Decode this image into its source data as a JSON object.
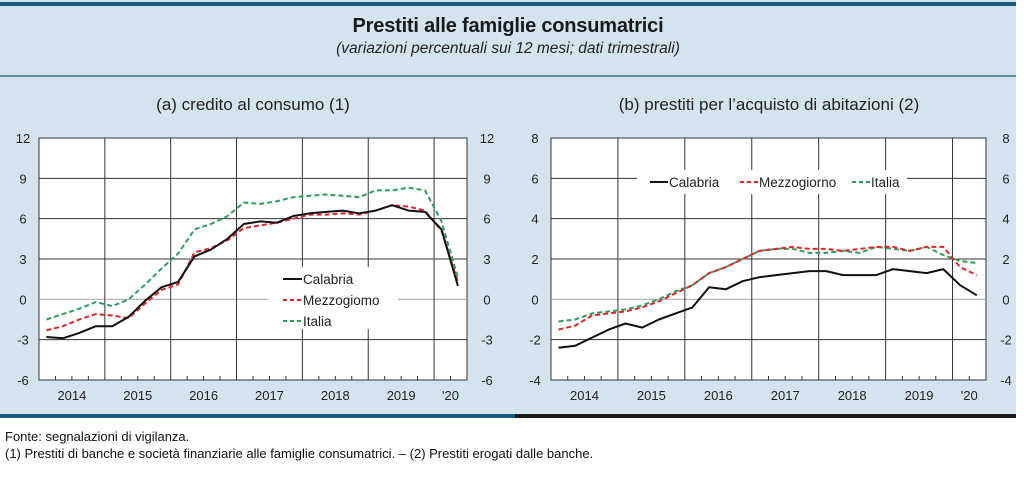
{
  "header": {
    "title": "Prestiti alle famiglie consumatrici",
    "subtitle": "(variazioni percentuali sui 12 mesi; dati trimestrali)"
  },
  "colors": {
    "frame_bg": "#d3e4ee",
    "accent_blue": "#1b5c7e",
    "calabria": "#111111",
    "mezzogiorno": "#e0262b",
    "italia": "#2e9e5b"
  },
  "chart_data": [
    {
      "type": "line",
      "title": "(a) credito al consumo (1)",
      "xlabel": "",
      "ylabel": "",
      "x_tick_labels": [
        "2014",
        "2015",
        "2016",
        "2017",
        "2018",
        "2019",
        "'20"
      ],
      "x": [
        "2014Q1",
        "2014Q2",
        "2014Q3",
        "2014Q4",
        "2015Q1",
        "2015Q2",
        "2015Q3",
        "2015Q4",
        "2016Q1",
        "2016Q2",
        "2016Q3",
        "2016Q4",
        "2017Q1",
        "2017Q2",
        "2017Q3",
        "2017Q4",
        "2018Q1",
        "2018Q2",
        "2018Q3",
        "2018Q4",
        "2019Q1",
        "2019Q2",
        "2019Q3",
        "2019Q4",
        "2020Q1",
        "2020Q2"
      ],
      "ylim": [
        -6,
        12
      ],
      "y_ticks": [
        -6,
        -3,
        0,
        3,
        6,
        9,
        12
      ],
      "grid": true,
      "legend_position": "center-right",
      "legend_layout": "vertical",
      "series": [
        {
          "name": "Calabria",
          "style": "solid",
          "values": [
            -2.8,
            -2.9,
            -2.5,
            -2.0,
            -2.0,
            -1.3,
            -0.1,
            0.9,
            1.3,
            3.2,
            3.7,
            4.5,
            5.6,
            5.8,
            5.7,
            6.2,
            6.4,
            6.5,
            6.6,
            6.4,
            6.6,
            7.0,
            6.6,
            6.5,
            5.2,
            1.0
          ]
        },
        {
          "name": "Mezzogiomo",
          "style": "dashed",
          "values": [
            -2.3,
            -2.0,
            -1.5,
            -1.1,
            -1.2,
            -1.4,
            -0.3,
            0.7,
            1.1,
            3.5,
            3.8,
            4.4,
            5.3,
            5.5,
            5.7,
            6.0,
            6.3,
            6.3,
            6.4,
            6.3,
            6.6,
            7.0,
            6.9,
            6.6,
            5.1,
            1.3
          ]
        },
        {
          "name": "Italia",
          "style": "dashed",
          "values": [
            -1.5,
            -1.1,
            -0.7,
            -0.2,
            -0.5,
            0.0,
            1.1,
            2.3,
            3.4,
            5.2,
            5.6,
            6.2,
            7.2,
            7.1,
            7.3,
            7.6,
            7.7,
            7.8,
            7.7,
            7.6,
            8.1,
            8.1,
            8.3,
            8.1,
            5.8,
            1.6
          ]
        }
      ]
    },
    {
      "type": "line",
      "title": "(b) prestiti per l’acquisto di abitazioni (2)",
      "xlabel": "",
      "ylabel": "",
      "x_tick_labels": [
        "2014",
        "2015",
        "2016",
        "2017",
        "2018",
        "2019",
        "'20"
      ],
      "x": [
        "2014Q1",
        "2014Q2",
        "2014Q3",
        "2014Q4",
        "2015Q1",
        "2015Q2",
        "2015Q3",
        "2015Q4",
        "2016Q1",
        "2016Q2",
        "2016Q3",
        "2016Q4",
        "2017Q1",
        "2017Q2",
        "2017Q3",
        "2017Q4",
        "2018Q1",
        "2018Q2",
        "2018Q3",
        "2018Q4",
        "2019Q1",
        "2019Q2",
        "2019Q3",
        "2019Q4",
        "2020Q1",
        "2020Q2"
      ],
      "ylim": [
        -4,
        8
      ],
      "y_ticks": [
        -4,
        -2,
        0,
        2,
        4,
        6,
        8
      ],
      "grid": true,
      "legend_position": "top-center",
      "legend_layout": "horizontal",
      "series": [
        {
          "name": "Calabria",
          "style": "solid",
          "values": [
            -2.4,
            -2.3,
            -1.9,
            -1.5,
            -1.2,
            -1.4,
            -1.0,
            -0.7,
            -0.4,
            0.6,
            0.5,
            0.9,
            1.1,
            1.2,
            1.3,
            1.4,
            1.4,
            1.2,
            1.2,
            1.2,
            1.5,
            1.4,
            1.3,
            1.5,
            0.7,
            0.2
          ]
        },
        {
          "name": "Mezzogiorno",
          "style": "dashed",
          "values": [
            -1.5,
            -1.3,
            -0.8,
            -0.7,
            -0.6,
            -0.4,
            -0.1,
            0.3,
            0.7,
            1.3,
            1.6,
            2.0,
            2.4,
            2.5,
            2.6,
            2.5,
            2.5,
            2.4,
            2.5,
            2.6,
            2.6,
            2.4,
            2.6,
            2.6,
            1.6,
            1.2
          ]
        },
        {
          "name": "Italia",
          "style": "dashed",
          "values": [
            -1.1,
            -1.0,
            -0.7,
            -0.6,
            -0.5,
            -0.3,
            0.0,
            0.4,
            0.7,
            1.3,
            1.6,
            2.0,
            2.4,
            2.5,
            2.5,
            2.3,
            2.3,
            2.4,
            2.3,
            2.6,
            2.5,
            2.4,
            2.6,
            2.2,
            1.9,
            1.8
          ]
        }
      ]
    }
  ],
  "notes": {
    "source": "Fonte: segnalazioni di vigilanza.",
    "footnote": "(1) Prestiti di banche e società finanziarie alle famiglie consumatrici. – (2) Prestiti erogati dalle banche."
  }
}
